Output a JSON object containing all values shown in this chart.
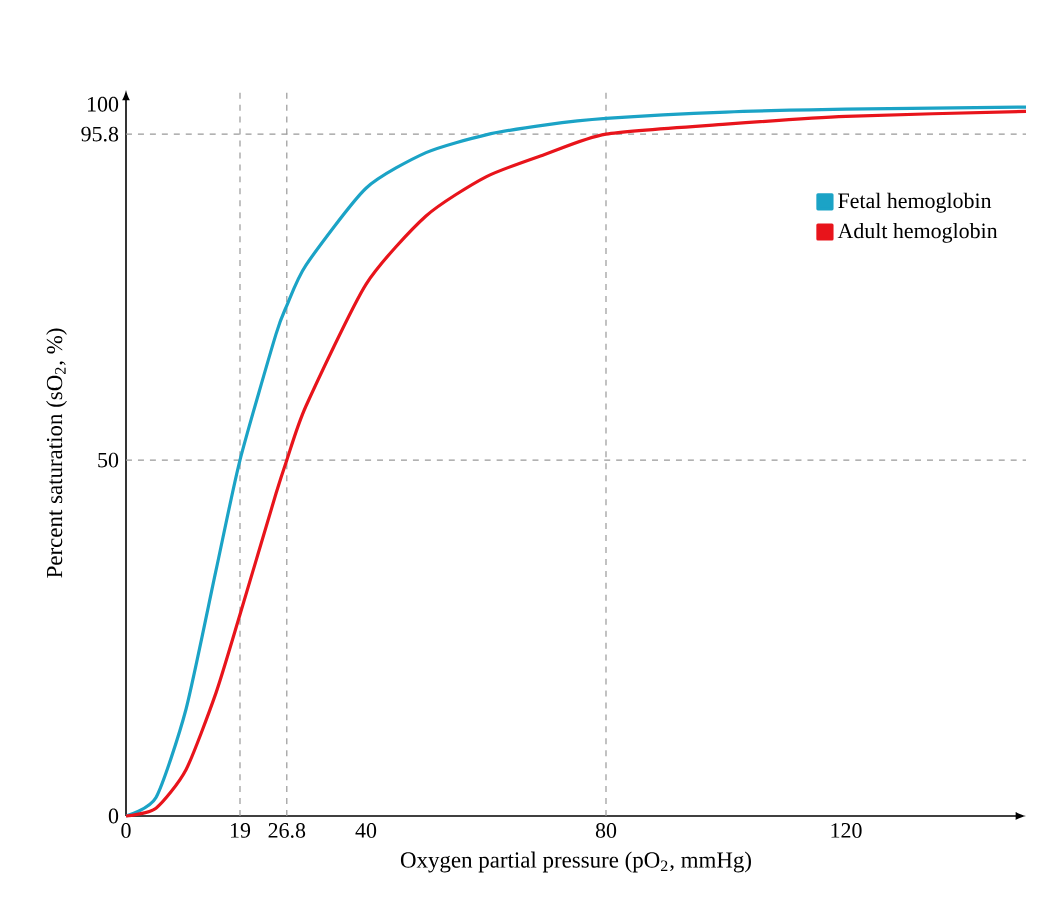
{
  "chart_data": {
    "type": "line",
    "xlabel": "Oxygen partial pressure (pO$_{2}$, mmHg)",
    "ylabel": "Percent saturation (sO$_{2}$, %)",
    "x": [
      0,
      5,
      10,
      15,
      19,
      25,
      26.8,
      30,
      40,
      50,
      60,
      70,
      80,
      100,
      120,
      150
    ],
    "series": [
      {
        "name": "Fetal hemoglobin",
        "color": "#1ba3c6",
        "values": [
          0,
          2.6,
          15,
          34.5,
          50,
          67.7,
          71.7,
          77.4,
          88.2,
          93.2,
          95.7,
          97.1,
          98,
          98.9,
          99.3,
          99.6
        ]
      },
      {
        "name": "Adult hemoglobin",
        "color": "#e8141b",
        "values": [
          0,
          1.1,
          6.5,
          17.3,
          28.3,
          45.3,
          50,
          57.6,
          74.7,
          84.3,
          89.8,
          93,
          95.8,
          97.2,
          98.3,
          99
        ]
      }
    ],
    "xlim": [
      0,
      150
    ],
    "ylim": [
      0,
      102
    ],
    "xticks": [
      0,
      19,
      26.8,
      40,
      80,
      120
    ],
    "yticks": [
      0,
      50,
      95.8,
      100
    ],
    "ref_lines": [
      {
        "axis": "x",
        "value": 19,
        "color": "#999999",
        "line_style": "dashed"
      },
      {
        "axis": "x",
        "value": 26.8,
        "color": "#999999",
        "line_style": "dashed"
      },
      {
        "axis": "x",
        "value": 80,
        "color": "#999999",
        "line_style": "dashed"
      },
      {
        "axis": "y",
        "value": 50,
        "color": "#999999",
        "line_style": "dashed"
      },
      {
        "axis": "y",
        "value": 95.8,
        "color": "#999999",
        "line_style": "dashed"
      }
    ],
    "legend": "top right"
  }
}
